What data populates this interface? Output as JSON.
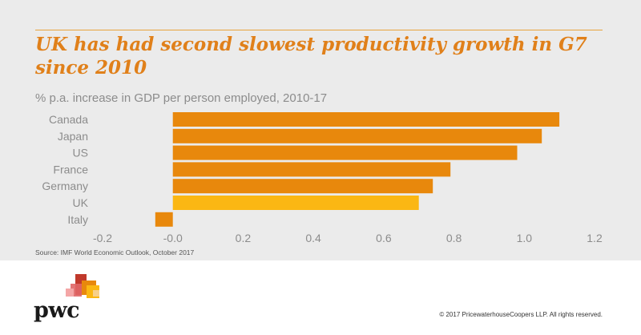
{
  "header": {
    "title": "UK has had second slowest productivity growth in G7 since 2010",
    "subtitle": "% p.a. increase in GDP per person employed, 2010-17"
  },
  "footer": {
    "source": "Source: IMF World Economic Outlook, October 2017",
    "copyright": "© 2017 PricewaterhouseCoopers LLP. All rights reserved.",
    "logo_text": "pwc"
  },
  "colors": {
    "bar": "#e8880c",
    "highlight": "#fbb713",
    "title": "#e0801a",
    "text": "#8c8c8c",
    "panel": "#ebebeb"
  },
  "chart_data": {
    "type": "bar",
    "orientation": "horizontal",
    "title": "UK has had second slowest productivity growth in G7 since 2010",
    "subtitle": "% p.a. increase in GDP per person employed, 2010-17",
    "categories": [
      "Canada",
      "Japan",
      "US",
      "France",
      "Germany",
      "UK",
      "Italy"
    ],
    "values": [
      1.1,
      1.05,
      0.98,
      0.79,
      0.74,
      0.7,
      -0.05
    ],
    "highlight_category": "UK",
    "xlim": [
      -0.2,
      1.2
    ],
    "ticks": [
      -0.2,
      0.0,
      0.2,
      0.4,
      0.6,
      0.8,
      1.0,
      1.2
    ],
    "tick_labels": [
      "-0.2",
      "-0.0",
      "0.2",
      "0.4",
      "0.6",
      "0.8",
      "1.0",
      "1.2"
    ],
    "grid": false,
    "legend": "none"
  }
}
